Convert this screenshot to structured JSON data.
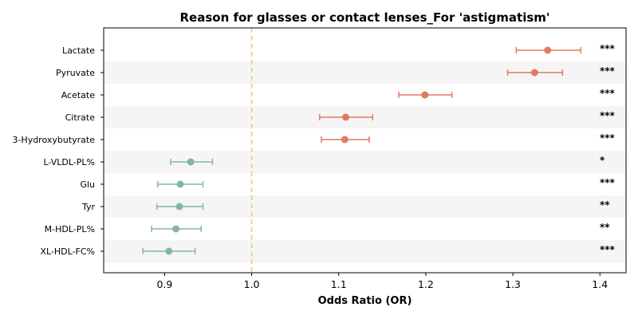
{
  "chart_data": {
    "type": "scatter",
    "subtype": "forest-plot",
    "title": "Reason for glasses or contact lenses_For 'astigmatism'",
    "xlabel": "Odds Ratio (OR)",
    "ylabel": "",
    "xlim": [
      0.83,
      1.43
    ],
    "xticks": [
      0.9,
      1.0,
      1.1,
      1.2,
      1.3,
      1.4
    ],
    "xtick_labels": [
      "0.9",
      "1.0",
      "1.1",
      "1.2",
      "1.3",
      "1.4"
    ],
    "reference_line": 1.0,
    "grid": false,
    "alternating_row_shading": true,
    "colors": {
      "increase": "#e07b5f",
      "decrease": "#84b89e",
      "reference_line": "#f0c27b",
      "row_band": "#f5f5f5"
    },
    "rows": [
      {
        "label": "Lactate",
        "or": 1.34,
        "ci_low": 1.304,
        "ci_high": 1.378,
        "significance": "***",
        "direction": "increase"
      },
      {
        "label": "Pyruvate",
        "or": 1.325,
        "ci_low": 1.294,
        "ci_high": 1.357,
        "significance": "***",
        "direction": "increase"
      },
      {
        "label": "Acetate",
        "or": 1.199,
        "ci_low": 1.169,
        "ci_high": 1.23,
        "significance": "***",
        "direction": "increase"
      },
      {
        "label": "Citrate",
        "or": 1.108,
        "ci_low": 1.078,
        "ci_high": 1.139,
        "significance": "***",
        "direction": "increase"
      },
      {
        "label": "3-Hydroxybutyrate",
        "or": 1.107,
        "ci_low": 1.08,
        "ci_high": 1.135,
        "significance": "***",
        "direction": "increase"
      },
      {
        "label": "L-VLDL-PL%",
        "or": 0.93,
        "ci_low": 0.907,
        "ci_high": 0.955,
        "significance": "*",
        "direction": "decrease"
      },
      {
        "label": "Glu",
        "or": 0.918,
        "ci_low": 0.892,
        "ci_high": 0.944,
        "significance": "***",
        "direction": "decrease"
      },
      {
        "label": "Tyr",
        "or": 0.917,
        "ci_low": 0.891,
        "ci_high": 0.944,
        "significance": "**",
        "direction": "decrease"
      },
      {
        "label": "M-HDL-PL%",
        "or": 0.913,
        "ci_low": 0.885,
        "ci_high": 0.942,
        "significance": "**",
        "direction": "decrease"
      },
      {
        "label": "XL-HDL-FC%",
        "or": 0.905,
        "ci_low": 0.875,
        "ci_high": 0.935,
        "significance": "***",
        "direction": "decrease"
      }
    ]
  }
}
